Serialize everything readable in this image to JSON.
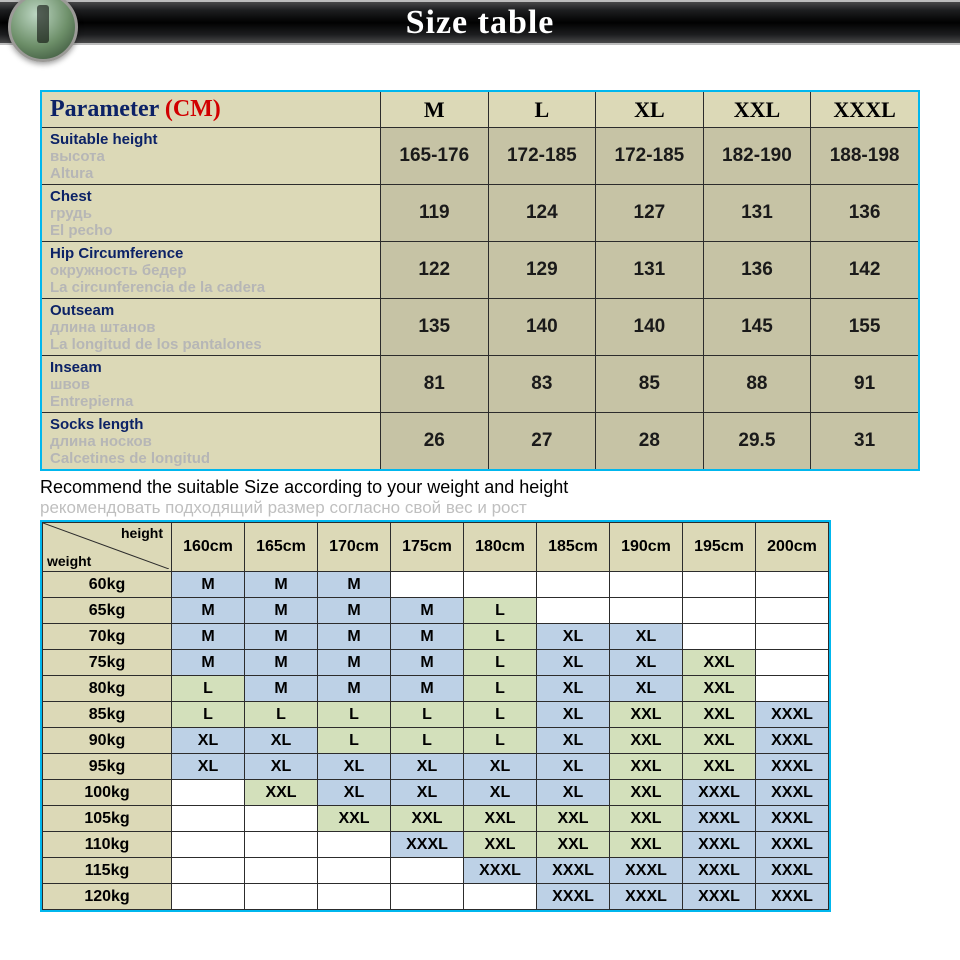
{
  "banner": {
    "title": "Size table"
  },
  "paramTable": {
    "header": {
      "label": "Parameter",
      "unit": "(CM)",
      "sizes": [
        "M",
        "L",
        "XL",
        "XXL",
        "XXXL"
      ]
    },
    "rows": [
      {
        "en": "Suitable height",
        "ru": "высота",
        "es": "Altura",
        "vals": [
          "165-176",
          "172-185",
          "172-185",
          "182-190",
          "188-198"
        ]
      },
      {
        "en": "Chest",
        "ru": "грудь",
        "es": "El pecho",
        "vals": [
          "119",
          "124",
          "127",
          "131",
          "136"
        ]
      },
      {
        "en": "Hip Circumference",
        "ru": "окружность бедер",
        "es": "La circunferencia de la cadera",
        "vals": [
          "122",
          "129",
          "131",
          "136",
          "142"
        ]
      },
      {
        "en": "Outseam",
        "ru": "длина штанов",
        "es": "La longitud de los pantalones",
        "vals": [
          "135",
          "140",
          "140",
          "145",
          "155"
        ]
      },
      {
        "en": "Inseam",
        "ru": "швов",
        "es": "Entrepierna",
        "vals": [
          "81",
          "83",
          "85",
          "88",
          "91"
        ]
      },
      {
        "en": "Socks length",
        "ru": "длина носков",
        "es": "Calcetines de longitud",
        "vals": [
          "26",
          "27",
          "28",
          "29.5",
          "31"
        ]
      }
    ]
  },
  "recommend": {
    "en": "Recommend the suitable Size according to your weight and height",
    "ru": "рекомендовать подходящий размер согласно свой вес и рост"
  },
  "matrix": {
    "cornerHeight": "height",
    "cornerWeight": "weight",
    "heights": [
      "160cm",
      "165cm",
      "170cm",
      "175cm",
      "180cm",
      "185cm",
      "190cm",
      "195cm",
      "200cm"
    ],
    "weights": [
      "60kg",
      "65kg",
      "70kg",
      "75kg",
      "80kg",
      "85kg",
      "90kg",
      "95kg",
      "100kg",
      "105kg",
      "110kg",
      "115kg",
      "120kg"
    ],
    "cells": [
      [
        {
          "v": "M",
          "c": "blue"
        },
        {
          "v": "M",
          "c": "blue"
        },
        {
          "v": "M",
          "c": "blue"
        },
        {
          "v": "",
          "c": ""
        },
        {
          "v": "",
          "c": ""
        },
        {
          "v": "",
          "c": ""
        },
        {
          "v": "",
          "c": ""
        },
        {
          "v": "",
          "c": ""
        },
        {
          "v": "",
          "c": ""
        }
      ],
      [
        {
          "v": "M",
          "c": "blue"
        },
        {
          "v": "M",
          "c": "blue"
        },
        {
          "v": "M",
          "c": "blue"
        },
        {
          "v": "M",
          "c": "blue"
        },
        {
          "v": "L",
          "c": "green"
        },
        {
          "v": "",
          "c": ""
        },
        {
          "v": "",
          "c": ""
        },
        {
          "v": "",
          "c": ""
        },
        {
          "v": "",
          "c": ""
        }
      ],
      [
        {
          "v": "M",
          "c": "blue"
        },
        {
          "v": "M",
          "c": "blue"
        },
        {
          "v": "M",
          "c": "blue"
        },
        {
          "v": "M",
          "c": "blue"
        },
        {
          "v": "L",
          "c": "green"
        },
        {
          "v": "XL",
          "c": "blue"
        },
        {
          "v": "XL",
          "c": "blue"
        },
        {
          "v": "",
          "c": ""
        },
        {
          "v": "",
          "c": ""
        }
      ],
      [
        {
          "v": "M",
          "c": "blue"
        },
        {
          "v": "M",
          "c": "blue"
        },
        {
          "v": "M",
          "c": "blue"
        },
        {
          "v": "M",
          "c": "blue"
        },
        {
          "v": "L",
          "c": "green"
        },
        {
          "v": "XL",
          "c": "blue"
        },
        {
          "v": "XL",
          "c": "blue"
        },
        {
          "v": "XXL",
          "c": "green"
        },
        {
          "v": "",
          "c": ""
        }
      ],
      [
        {
          "v": "L",
          "c": "green"
        },
        {
          "v": "M",
          "c": "blue"
        },
        {
          "v": "M",
          "c": "blue"
        },
        {
          "v": "M",
          "c": "blue"
        },
        {
          "v": "L",
          "c": "green"
        },
        {
          "v": "XL",
          "c": "blue"
        },
        {
          "v": "XL",
          "c": "blue"
        },
        {
          "v": "XXL",
          "c": "green"
        },
        {
          "v": "",
          "c": ""
        }
      ],
      [
        {
          "v": "L",
          "c": "green"
        },
        {
          "v": "L",
          "c": "green"
        },
        {
          "v": "L",
          "c": "green"
        },
        {
          "v": "L",
          "c": "green"
        },
        {
          "v": "L",
          "c": "green"
        },
        {
          "v": "XL",
          "c": "blue"
        },
        {
          "v": "XXL",
          "c": "green"
        },
        {
          "v": "XXL",
          "c": "green"
        },
        {
          "v": "XXXL",
          "c": "blue"
        }
      ],
      [
        {
          "v": "XL",
          "c": "blue"
        },
        {
          "v": "XL",
          "c": "blue"
        },
        {
          "v": "L",
          "c": "green"
        },
        {
          "v": "L",
          "c": "green"
        },
        {
          "v": "L",
          "c": "green"
        },
        {
          "v": "XL",
          "c": "blue"
        },
        {
          "v": "XXL",
          "c": "green"
        },
        {
          "v": "XXL",
          "c": "green"
        },
        {
          "v": "XXXL",
          "c": "blue"
        }
      ],
      [
        {
          "v": "XL",
          "c": "blue"
        },
        {
          "v": "XL",
          "c": "blue"
        },
        {
          "v": "XL",
          "c": "blue"
        },
        {
          "v": "XL",
          "c": "blue"
        },
        {
          "v": "XL",
          "c": "blue"
        },
        {
          "v": "XL",
          "c": "blue"
        },
        {
          "v": "XXL",
          "c": "green"
        },
        {
          "v": "XXL",
          "c": "green"
        },
        {
          "v": "XXXL",
          "c": "blue"
        }
      ],
      [
        {
          "v": "",
          "c": ""
        },
        {
          "v": "XXL",
          "c": "green"
        },
        {
          "v": "XL",
          "c": "blue"
        },
        {
          "v": "XL",
          "c": "blue"
        },
        {
          "v": "XL",
          "c": "blue"
        },
        {
          "v": "XL",
          "c": "blue"
        },
        {
          "v": "XXL",
          "c": "green"
        },
        {
          "v": "XXXL",
          "c": "blue"
        },
        {
          "v": "XXXL",
          "c": "blue"
        }
      ],
      [
        {
          "v": "",
          "c": ""
        },
        {
          "v": "",
          "c": ""
        },
        {
          "v": "XXL",
          "c": "green"
        },
        {
          "v": "XXL",
          "c": "green"
        },
        {
          "v": "XXL",
          "c": "green"
        },
        {
          "v": "XXL",
          "c": "green"
        },
        {
          "v": "XXL",
          "c": "green"
        },
        {
          "v": "XXXL",
          "c": "blue"
        },
        {
          "v": "XXXL",
          "c": "blue"
        }
      ],
      [
        {
          "v": "",
          "c": ""
        },
        {
          "v": "",
          "c": ""
        },
        {
          "v": "",
          "c": ""
        },
        {
          "v": "XXXL",
          "c": "blue"
        },
        {
          "v": "XXL",
          "c": "green"
        },
        {
          "v": "XXL",
          "c": "green"
        },
        {
          "v": "XXL",
          "c": "green"
        },
        {
          "v": "XXXL",
          "c": "blue"
        },
        {
          "v": "XXXL",
          "c": "blue"
        }
      ],
      [
        {
          "v": "",
          "c": ""
        },
        {
          "v": "",
          "c": ""
        },
        {
          "v": "",
          "c": ""
        },
        {
          "v": "",
          "c": ""
        },
        {
          "v": "XXXL",
          "c": "blue"
        },
        {
          "v": "XXXL",
          "c": "blue"
        },
        {
          "v": "XXXL",
          "c": "blue"
        },
        {
          "v": "XXXL",
          "c": "blue"
        },
        {
          "v": "XXXL",
          "c": "blue"
        }
      ],
      [
        {
          "v": "",
          "c": ""
        },
        {
          "v": "",
          "c": ""
        },
        {
          "v": "",
          "c": ""
        },
        {
          "v": "",
          "c": ""
        },
        {
          "v": "",
          "c": ""
        },
        {
          "v": "XXXL",
          "c": "blue"
        },
        {
          "v": "XXXL",
          "c": "blue"
        },
        {
          "v": "XXXL",
          "c": "blue"
        },
        {
          "v": "XXXL",
          "c": "blue"
        }
      ]
    ]
  }
}
